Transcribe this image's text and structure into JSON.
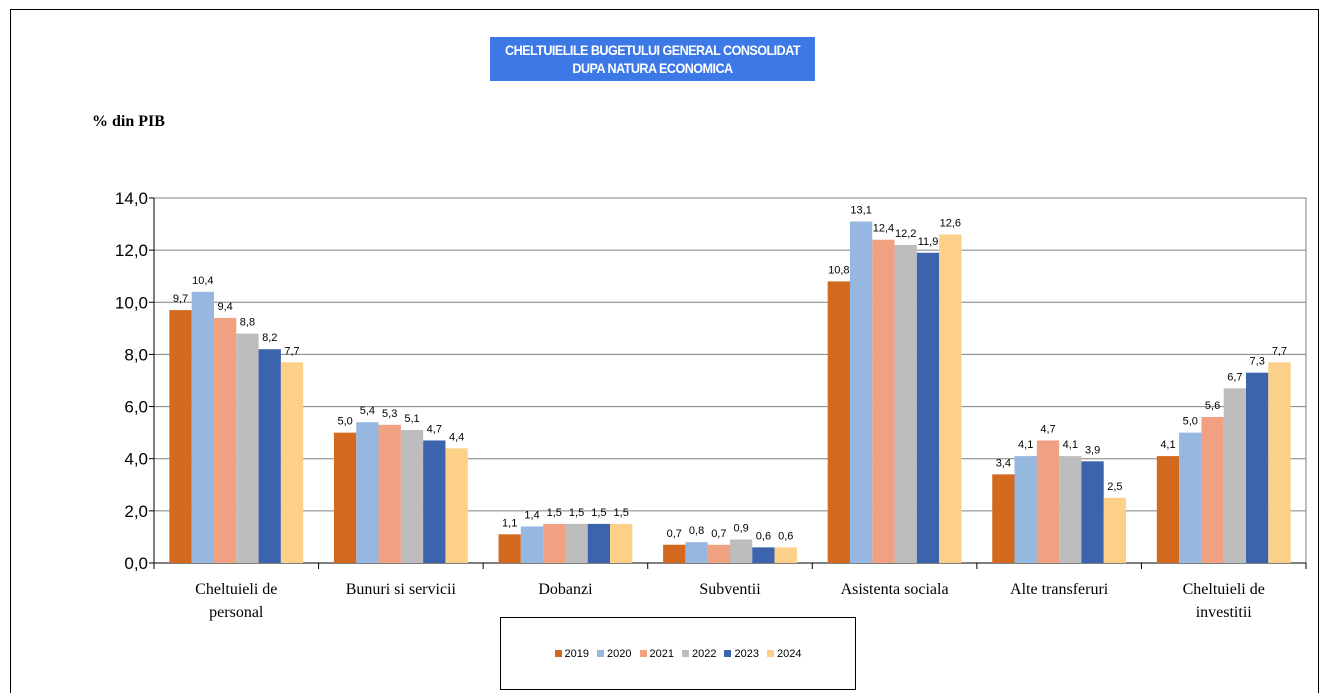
{
  "title": {
    "line1": "CHELTUIELILE BUGETULUI GENERAL CONSOLIDAT",
    "line2": "DUPA NATURA ECONOMICA"
  },
  "colors": {
    "title_bg": "#3c78e6",
    "series": [
      "#d2691e",
      "#95b7e0",
      "#efa182",
      "#bdbdbd",
      "#3b64ad",
      "#fdd08a"
    ]
  },
  "chart_data": {
    "type": "bar",
    "title": "CHELTUIELILE BUGETULUI GENERAL CONSOLIDAT DUPA NATURA ECONOMICA",
    "ylabel": "% din PIB",
    "xlabel": "",
    "ylim": [
      0,
      14
    ],
    "y_ticks": [
      "0,0",
      "2,0",
      "4,0",
      "6,0",
      "8,0",
      "10,0",
      "12,0",
      "14,0"
    ],
    "grid": true,
    "legend_position": "bottom",
    "categories": [
      [
        "Cheltuieli de",
        "personal"
      ],
      [
        "Bunuri si servicii"
      ],
      [
        "Dobanzi"
      ],
      [
        "Subventii"
      ],
      [
        "Asistenta sociala"
      ],
      [
        "Alte transferuri"
      ],
      [
        "Cheltuieli de",
        "investitii"
      ]
    ],
    "series": [
      {
        "name": "2019",
        "values": [
          9.7,
          5.0,
          1.1,
          0.7,
          10.8,
          3.4,
          4.1
        ],
        "labels": [
          "9,7",
          "5,0",
          "1,1",
          "0,7",
          "10,8",
          "3,4",
          "4,1"
        ]
      },
      {
        "name": "2020",
        "values": [
          10.4,
          5.4,
          1.4,
          0.8,
          13.1,
          4.1,
          5.0
        ],
        "labels": [
          "10,4",
          "5,4",
          "1,4",
          "0,8",
          "13,1",
          "4,1",
          "5,0"
        ]
      },
      {
        "name": "2021",
        "values": [
          9.4,
          5.3,
          1.5,
          0.7,
          12.4,
          4.7,
          5.6
        ],
        "labels": [
          "9,4",
          "5,3",
          "1,5",
          "0,7",
          "12,4",
          "4,7",
          "5,6"
        ]
      },
      {
        "name": "2022",
        "values": [
          8.8,
          5.1,
          1.5,
          0.9,
          12.2,
          4.1,
          6.7
        ],
        "labels": [
          "8,8",
          "5,1",
          "1,5",
          "0,9",
          "12,2",
          "4,1",
          "6,7"
        ]
      },
      {
        "name": "2023",
        "values": [
          8.2,
          4.7,
          1.5,
          0.6,
          11.9,
          3.9,
          7.3
        ],
        "labels": [
          "8,2",
          "4,7",
          "1,5",
          "0,6",
          "11,9",
          "3,9",
          "7,3"
        ]
      },
      {
        "name": "2024",
        "values": [
          7.7,
          4.4,
          1.5,
          0.6,
          12.6,
          2.5,
          7.7
        ],
        "labels": [
          "7,7",
          "4,4",
          "1,5",
          "0,6",
          "12,6",
          "2,5",
          "7,7"
        ]
      }
    ]
  }
}
